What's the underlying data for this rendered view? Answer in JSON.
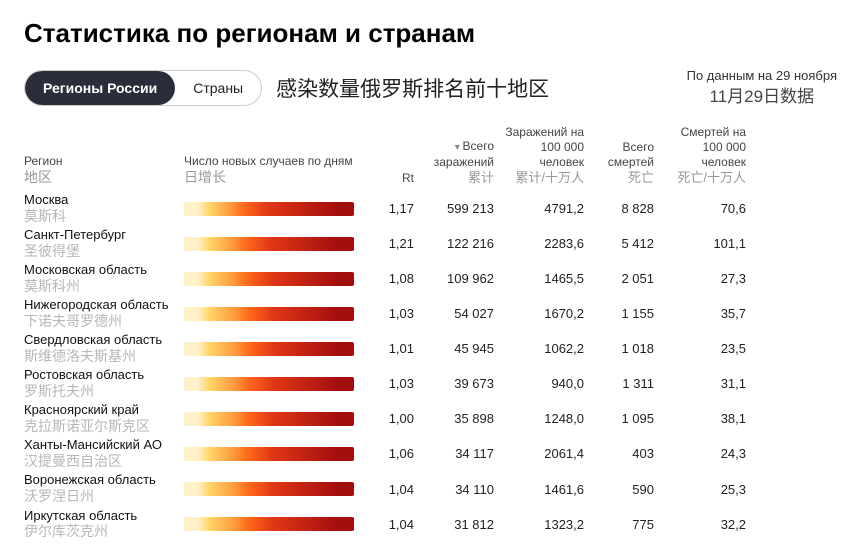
{
  "title": "Статистика по регионам и странам",
  "tabs": {
    "regions": "Регионы России",
    "countries": "Страны"
  },
  "subtitle_cn": "感染数量俄罗斯排名前十地区",
  "asof": {
    "ru": "По данным на 29 ноября",
    "cn": "11月29日数据"
  },
  "columns": {
    "region": {
      "ru": "Регион",
      "cn": "地区"
    },
    "spark": {
      "ru": "Число новых случаев по дням",
      "cn": "日增长"
    },
    "rt": {
      "ru": "Rt",
      "cn": ""
    },
    "total": {
      "ru": "Всего заражений",
      "cn": "累计"
    },
    "per100": {
      "ru": "Заражений на 100 000 человек",
      "cn": "累计/十万人"
    },
    "deaths": {
      "ru": "Всего смертей",
      "cn": "死亡"
    },
    "dper100": {
      "ru": "Смертей на 100 000 человек",
      "cn": "死亡/十万人"
    }
  },
  "spark_gradient_colors": {
    "y1": "#fff2c9",
    "y2": "#ffd56b",
    "o1": "#ff9a3c",
    "o2": "#ff6a1a",
    "r1": "#e03616",
    "r2": "#a30f0f"
  },
  "rows": [
    {
      "ru": "Москва",
      "cn": "莫斯科",
      "rt": "1,17",
      "total": "599 213",
      "per100": "4791,2",
      "deaths": "8 828",
      "dper100": "70,6",
      "intensity": 1.0
    },
    {
      "ru": "Санкт-Петербург",
      "cn": "圣彼得堡",
      "rt": "1,21",
      "total": "122 216",
      "per100": "2283,6",
      "deaths": "5 412",
      "dper100": "101,1",
      "intensity": 0.85
    },
    {
      "ru": "Московская область",
      "cn": "莫斯科州",
      "rt": "1,08",
      "total": "109 962",
      "per100": "1465,5",
      "deaths": "2 051",
      "dper100": "27,3",
      "intensity": 0.8
    },
    {
      "ru": "Нижегородская область",
      "cn": "下诺夫哥罗德州",
      "rt": "1,03",
      "total": "54 027",
      "per100": "1670,2",
      "deaths": "1 155",
      "dper100": "35,7",
      "intensity": 0.7
    },
    {
      "ru": "Свердловская область",
      "cn": "斯维德洛夫斯基州",
      "rt": "1,01",
      "total": "45 945",
      "per100": "1062,2",
      "deaths": "1 018",
      "dper100": "23,5",
      "intensity": 0.68
    },
    {
      "ru": "Ростовская область",
      "cn": "罗斯托夫州",
      "rt": "1,03",
      "total": "39 673",
      "per100": "940,0",
      "deaths": "1 311",
      "dper100": "31,1",
      "intensity": 0.72
    },
    {
      "ru": "Красноярский край",
      "cn": "克拉斯诺亚尔斯克区",
      "rt": "1,00",
      "total": "35 898",
      "per100": "1248,0",
      "deaths": "1 095",
      "dper100": "38,1",
      "intensity": 0.75
    },
    {
      "ru": "Ханты-Мансийский АО",
      "cn": "汉提曼西自治区",
      "rt": "1,06",
      "total": "34 117",
      "per100": "2061,4",
      "deaths": "403",
      "dper100": "24,3",
      "intensity": 0.78
    },
    {
      "ru": "Воронежская область",
      "cn": "沃罗涅日州",
      "rt": "1,04",
      "total": "34 110",
      "per100": "1461,6",
      "deaths": "590",
      "dper100": "25,3",
      "intensity": 0.7
    },
    {
      "ru": "Иркутская область",
      "cn": "伊尔库茨克州",
      "rt": "1,04",
      "total": "31 812",
      "per100": "1323,2",
      "deaths": "775",
      "dper100": "32,2",
      "intensity": 0.72
    }
  ]
}
